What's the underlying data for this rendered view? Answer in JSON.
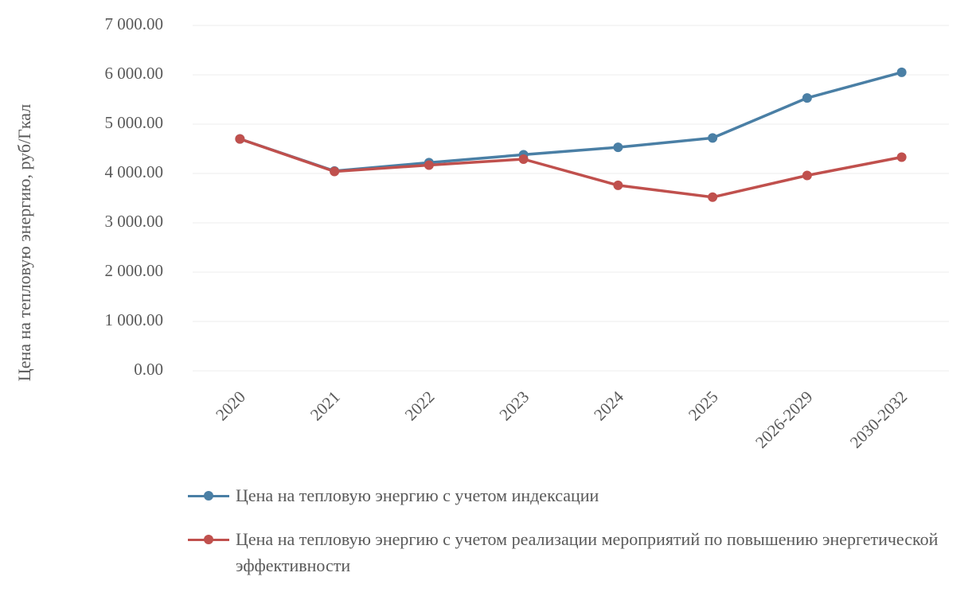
{
  "chart_data": {
    "type": "line",
    "ylabel": "Цена на тепловую энергию, руб/Гкал",
    "xlabel": "",
    "ylim": [
      0,
      7000
    ],
    "yticks": [
      "0.00",
      "1 000.00",
      "2 000.00",
      "3 000.00",
      "4 000.00",
      "5 000.00",
      "6 000.00",
      "7 000.00"
    ],
    "ytick_values": [
      0,
      1000,
      2000,
      3000,
      4000,
      5000,
      6000,
      7000
    ],
    "categories": [
      "2020",
      "2021",
      "2022",
      "2023",
      "2024",
      "2025",
      "2026-2029",
      "2030-2032"
    ],
    "grid": true,
    "legend_position": "bottom",
    "series": [
      {
        "name": "Цена на тепловую энергию с учетом индексации",
        "color": "#4a7fa5",
        "values": [
          4700,
          4050,
          4220,
          4380,
          4530,
          4720,
          5530,
          6050
        ]
      },
      {
        "name": "Цена на тепловую энергию с учетом реализации мероприятий по повышению энергетической эффективности",
        "color": "#c0504d",
        "values": [
          4700,
          4040,
          4170,
          4290,
          3760,
          3520,
          3960,
          4330
        ]
      }
    ]
  }
}
